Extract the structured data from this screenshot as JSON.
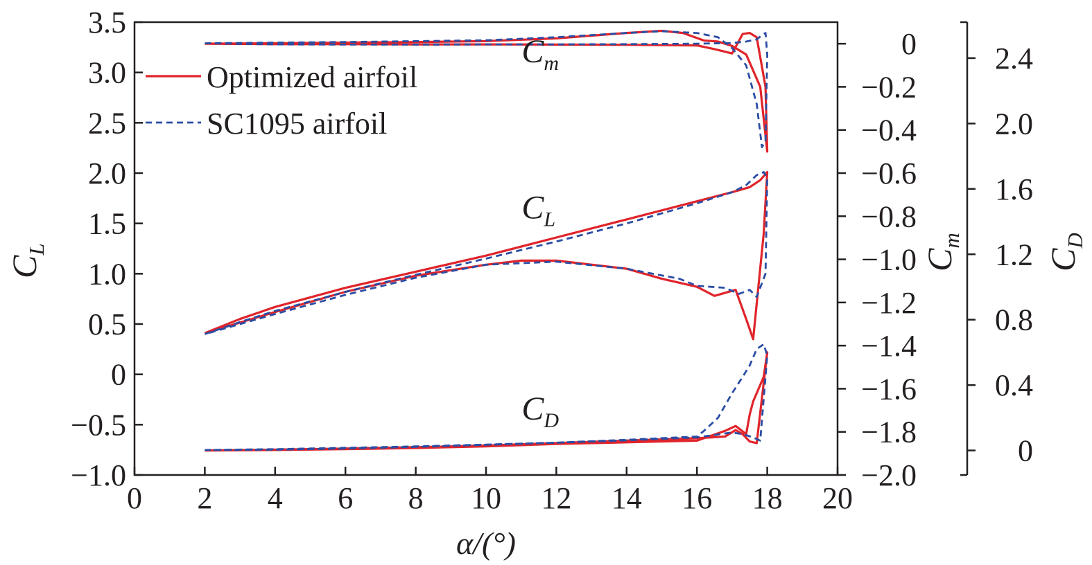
{
  "chart_data": {
    "type": "line",
    "xlabel": "α/(°)",
    "xlim": [
      0,
      20
    ],
    "xticks": [
      0,
      2,
      4,
      6,
      8,
      10,
      12,
      14,
      16,
      18,
      20
    ],
    "axes": {
      "CL": {
        "label": "C",
        "sub": "L",
        "lim": [
          -1.0,
          3.5
        ],
        "ticks": [
          "−1.0",
          "−0.5",
          "0",
          "0.5",
          "1.0",
          "1.5",
          "2.0",
          "2.5",
          "3.0",
          "3.5"
        ],
        "tick_values": [
          -1.0,
          -0.5,
          0,
          0.5,
          1.0,
          1.5,
          2.0,
          2.5,
          3.0,
          3.5
        ]
      },
      "Cm": {
        "label": "C",
        "sub": "m",
        "lim": [
          -2.0,
          0.1
        ],
        "ticks": [
          "0",
          "−0.2",
          "−0.4",
          "−0.6",
          "−0.8",
          "−1.0",
          "−1.2",
          "−1.4",
          "−1.6",
          "−1.8",
          "−2.0"
        ],
        "tick_values": [
          0,
          -0.2,
          -0.4,
          -0.6,
          -0.8,
          -1.0,
          -1.2,
          -1.4,
          -1.6,
          -1.8,
          -2.0
        ]
      },
      "CD": {
        "label": "C",
        "sub": "D",
        "lim": [
          -0.15,
          2.62
        ],
        "ticks": [
          "0",
          "0.4",
          "0.8",
          "1.2",
          "1.6",
          "2.0",
          "2.4"
        ],
        "tick_values": [
          0,
          0.4,
          0.8,
          1.2,
          1.6,
          2.0,
          2.4
        ]
      }
    },
    "annotations": [
      {
        "text": "C",
        "sub": "m",
        "x": 12.0,
        "y_cl": 3.1
      },
      {
        "text": "C",
        "sub": "L",
        "x": 12.0,
        "y_cl": 1.55
      },
      {
        "text": "C",
        "sub": "D",
        "x": 12.0,
        "y_cl": -0.45
      }
    ],
    "legend": {
      "position": "top-left",
      "entries": [
        {
          "name": "Optimized airfoil",
          "color": "#e0242b",
          "dash": "solid"
        },
        {
          "name": "SC1095 airfoil",
          "color": "#2b4da3",
          "dash": "dashed"
        }
      ]
    },
    "series": [
      {
        "name": "Optimized airfoil",
        "quantity": "CL",
        "axis": "CL",
        "color": "#e0242b",
        "dash": "solid",
        "x": [
          2,
          3,
          4,
          6,
          8,
          10,
          12,
          14,
          16,
          17,
          17.5,
          17.8,
          18,
          17.9,
          17.6,
          17.4,
          17.1,
          16.5,
          16.0,
          15.0,
          14.0,
          12.0,
          11.0,
          10.0,
          8.0,
          6.0,
          4.0,
          2.0
        ],
        "y": [
          0.41,
          0.55,
          0.67,
          0.86,
          1.02,
          1.18,
          1.36,
          1.54,
          1.72,
          1.81,
          1.86,
          1.93,
          2.01,
          1.4,
          0.35,
          0.55,
          0.84,
          0.78,
          0.87,
          0.95,
          1.05,
          1.13,
          1.13,
          1.09,
          0.98,
          0.82,
          0.62,
          0.41
        ]
      },
      {
        "name": "SC1095 airfoil",
        "quantity": "CL",
        "axis": "CL",
        "color": "#2b4da3",
        "dash": "dashed",
        "x": [
          2,
          3,
          4,
          6,
          8,
          10,
          12,
          14,
          16,
          17,
          17.4,
          17.7,
          17.9,
          18,
          17.95,
          17.7,
          17.5,
          17.2,
          16.8,
          16.0,
          15.5,
          14.0,
          12.0,
          10.0,
          8.0,
          6.0,
          4.0,
          2.0
        ],
        "y": [
          0.4,
          0.52,
          0.63,
          0.82,
          0.99,
          1.15,
          1.32,
          1.5,
          1.7,
          1.81,
          1.88,
          1.98,
          2.01,
          1.95,
          1.0,
          0.77,
          0.84,
          0.8,
          0.86,
          0.88,
          0.95,
          1.05,
          1.12,
          1.09,
          0.96,
          0.79,
          0.6,
          0.4
        ]
      },
      {
        "name": "Optimized airfoil",
        "quantity": "Cm",
        "axis": "Cm",
        "color": "#e0242b",
        "dash": "solid",
        "x": [
          2,
          4,
          6,
          8,
          10,
          12,
          14,
          15,
          15.6,
          16.2,
          16.6,
          17.0,
          17.4,
          17.8,
          18.0,
          17.95,
          17.7,
          17.5,
          17.3,
          17.0,
          16.5,
          16.0,
          14.0,
          12.0,
          10.0,
          8.0,
          6.0,
          4.0,
          2.0
        ],
        "y": [
          0,
          0.002,
          0.005,
          0.008,
          0.012,
          0.025,
          0.05,
          0.06,
          0.05,
          0.015,
          0.01,
          -0.01,
          -0.05,
          -0.2,
          -0.5,
          -0.2,
          0.03,
          0.05,
          0.045,
          -0.045,
          -0.025,
          -0.008,
          -0.005,
          -0.004,
          -0.003,
          -0.003,
          -0.002,
          -0.002,
          0
        ]
      },
      {
        "name": "SC1095 airfoil",
        "quantity": "Cm",
        "axis": "Cm",
        "color": "#2b4da3",
        "dash": "dashed",
        "x": [
          2,
          4,
          6,
          8,
          10,
          12,
          14,
          15,
          16,
          16.6,
          17.0,
          17.4,
          17.7,
          17.85,
          17.95,
          18.0,
          17.95,
          17.85,
          17.7,
          17.4,
          17.0,
          16.0,
          14.0,
          12.0,
          10.0,
          8.0,
          6.0,
          4.0,
          2.0
        ],
        "y": [
          0.002,
          0.005,
          0.008,
          0.012,
          0.016,
          0.03,
          0.05,
          0.058,
          0.05,
          0.03,
          -0.02,
          -0.1,
          -0.28,
          -0.48,
          -0.45,
          -0.05,
          0.05,
          0.04,
          0.02,
          0.01,
          0.003,
          0.0,
          -0.002,
          -0.003,
          -0.003,
          -0.004,
          -0.004,
          -0.003,
          0.002
        ]
      },
      {
        "name": "Optimized airfoil",
        "quantity": "CD",
        "axis": "CD",
        "color": "#e0242b",
        "dash": "solid",
        "x": [
          2,
          4,
          6,
          8,
          10,
          12,
          14,
          16,
          16.8,
          17.1,
          17.3,
          17.5,
          17.7,
          18.0,
          17.9,
          17.6,
          17.5,
          17.4,
          17.1,
          16.8,
          16.0,
          14.0,
          12.0,
          10.0,
          8.0,
          6.0,
          4.0,
          2.0
        ],
        "y": [
          0.0,
          0.005,
          0.012,
          0.02,
          0.03,
          0.045,
          0.06,
          0.075,
          0.085,
          0.125,
          0.1,
          0.055,
          0.045,
          0.6,
          0.45,
          0.3,
          0.22,
          0.1,
          0.15,
          0.12,
          0.06,
          0.05,
          0.04,
          0.025,
          0.015,
          0.008,
          0.003,
          0.0
        ]
      },
      {
        "name": "SC1095 airfoil",
        "quantity": "CD",
        "axis": "CD",
        "color": "#2b4da3",
        "dash": "dashed",
        "x": [
          2,
          4,
          6,
          8,
          10,
          12,
          14,
          16,
          16.5,
          17.0,
          17.3,
          17.6,
          17.8,
          18.0,
          17.9,
          17.7,
          17.5,
          17.3,
          17.0,
          16.6,
          16.2,
          16.0,
          14.0,
          12.0,
          10.0,
          8.0,
          6.0,
          4.0,
          2.0
        ],
        "y": [
          0.003,
          0.008,
          0.016,
          0.025,
          0.036,
          0.048,
          0.062,
          0.08,
          0.095,
          0.11,
          0.1,
          0.08,
          0.06,
          0.58,
          0.65,
          0.62,
          0.52,
          0.45,
          0.35,
          0.2,
          0.12,
          0.085,
          0.065,
          0.048,
          0.035,
          0.022,
          0.012,
          0.005,
          0.003
        ]
      }
    ]
  }
}
